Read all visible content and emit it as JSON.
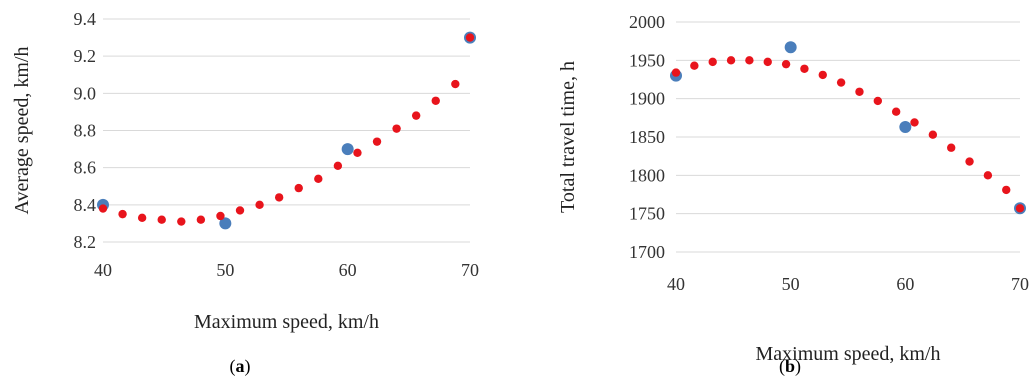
{
  "chart_data": [
    {
      "type": "scatter",
      "panel": "a",
      "title": "",
      "xlabel": "Maximum speed, km/h",
      "ylabel": "Average speed, km/h",
      "xlim": [
        40,
        70
      ],
      "ylim": [
        8.2,
        9.4
      ],
      "xticks": [
        40,
        50,
        60,
        70
      ],
      "yticks": [
        8.2,
        8.4,
        8.6,
        8.8,
        9.0,
        9.2,
        9.4
      ],
      "ytick_labels": [
        "8.2",
        "8.4",
        "8.6",
        "8.8",
        "9.0",
        "9.2",
        "9.4"
      ],
      "grid": "horizontal",
      "colors": {
        "series_1": "#4a7ebb",
        "series_2": "#e8141c",
        "grid": "#d9d9d9"
      },
      "series": [
        {
          "style": "large-dot",
          "color": "#4a7ebb",
          "x": [
            40,
            50,
            60,
            70
          ],
          "y": [
            8.4,
            8.3,
            8.7,
            9.3
          ]
        },
        {
          "style": "small-dot",
          "color": "#e8141c",
          "x": [
            40,
            41.6,
            43.2,
            44.8,
            46.4,
            48,
            49.6,
            51.2,
            52.8,
            54.4,
            56,
            57.6,
            59.2,
            60.8,
            62.4,
            64,
            65.6,
            67.2,
            68.8,
            70
          ],
          "y": [
            8.38,
            8.35,
            8.33,
            8.32,
            8.31,
            8.32,
            8.34,
            8.37,
            8.4,
            8.44,
            8.49,
            8.54,
            8.61,
            8.68,
            8.74,
            8.81,
            8.88,
            8.96,
            9.05,
            9.3
          ]
        }
      ],
      "panel_label": {
        "open": "(",
        "letter": "a",
        "close": ")"
      }
    },
    {
      "type": "scatter",
      "panel": "b",
      "title": "",
      "xlabel": "Maximum speed, km/h",
      "ylabel": "Total travel time, h",
      "xlim": [
        40,
        70
      ],
      "ylim": [
        1700,
        2000
      ],
      "xticks": [
        40,
        50,
        60,
        70
      ],
      "yticks": [
        1700,
        1750,
        1800,
        1850,
        1900,
        1950,
        2000
      ],
      "ytick_labels": [
        "1700",
        "1750",
        "1800",
        "1850",
        "1900",
        "1950",
        "2000"
      ],
      "grid": "horizontal",
      "colors": {
        "series_1": "#4a7ebb",
        "series_2": "#e8141c",
        "grid": "#d9d9d9"
      },
      "series": [
        {
          "style": "large-dot",
          "color": "#4a7ebb",
          "x": [
            40,
            50,
            60,
            70
          ],
          "y": [
            1930,
            1967,
            1863,
            1757
          ]
        },
        {
          "style": "small-dot",
          "color": "#e8141c",
          "x": [
            40,
            41.6,
            43.2,
            44.8,
            46.4,
            48,
            49.6,
            51.2,
            52.8,
            54.4,
            56,
            57.6,
            59.2,
            60.8,
            62.4,
            64,
            65.6,
            67.2,
            68.8,
            70
          ],
          "y": [
            1934,
            1943,
            1948,
            1950,
            1950,
            1948,
            1945,
            1939,
            1931,
            1921,
            1909,
            1897,
            1883,
            1869,
            1853,
            1836,
            1818,
            1800,
            1781,
            1757
          ]
        }
      ],
      "panel_label": {
        "open": "(",
        "letter": "b",
        "close": ")"
      }
    }
  ]
}
